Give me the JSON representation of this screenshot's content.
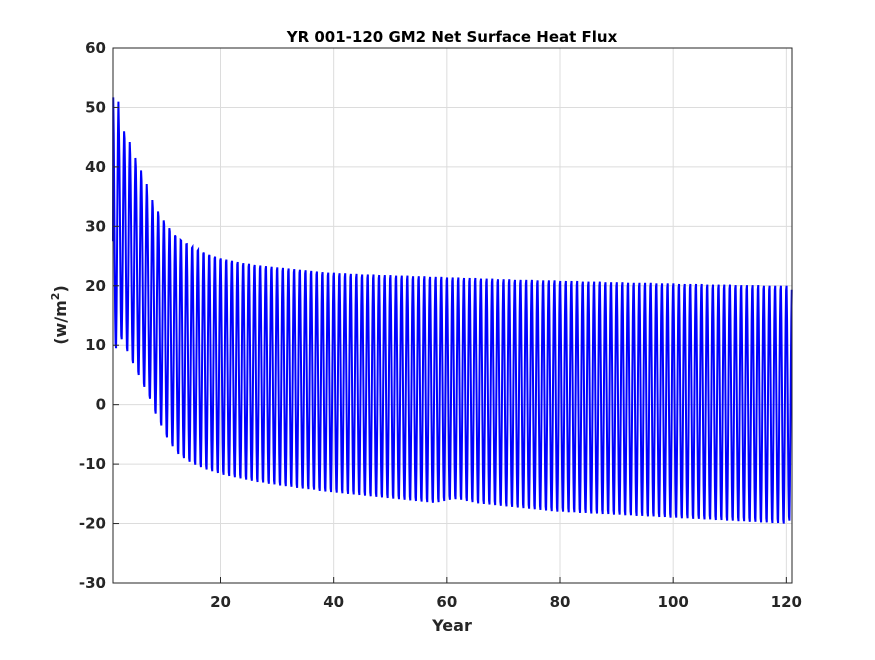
{
  "chart_data": {
    "type": "line",
    "title": "YR 001-120 GM2 Net Surface Heat Flux",
    "xlabel": "Year",
    "ylabel_main": "(w/m",
    "ylabel_sup": "2",
    "ylabel_close": ")",
    "xlim": [
      1,
      121
    ],
    "ylim": [
      -30,
      60
    ],
    "xticks": [
      "20",
      "40",
      "60",
      "80",
      "100",
      "120"
    ],
    "yticks": [
      "60",
      "50",
      "40",
      "30",
      "20",
      "10",
      "0",
      "-10",
      "-20",
      "-30"
    ],
    "grid": true,
    "series": [
      {
        "color": "#0000ff",
        "samples_per_year": 12,
        "annual_max": [
          51.7,
          46.6,
          44.8,
          42.1,
          40.0,
          37.7,
          35.0,
          33.1,
          31.6,
          30.3,
          29.1,
          28.3,
          27.6,
          27.0,
          26.5,
          26.0,
          25.6,
          25.2,
          24.9,
          24.6,
          24.4,
          24.2,
          24.0,
          23.8,
          23.7,
          23.5,
          23.4,
          23.3,
          23.2,
          23.1,
          23.0,
          22.9,
          22.8,
          22.7,
          22.6,
          22.5,
          22.4,
          22.3,
          22.2,
          22.2,
          22.1,
          22.1,
          22.0,
          22.0,
          21.9,
          21.9,
          21.9,
          21.8,
          21.8,
          21.8,
          21.7,
          21.7,
          21.7,
          21.6,
          21.6,
          21.6,
          21.5,
          21.5,
          21.5,
          21.4,
          21.4,
          21.4,
          21.3,
          21.3,
          21.3,
          21.2,
          21.2,
          21.2,
          21.1,
          21.1,
          21.1,
          21.0,
          21.0,
          21.0,
          21.0,
          20.9,
          20.9,
          20.9,
          20.9,
          20.8,
          20.8,
          20.8,
          20.8,
          20.7,
          20.7,
          20.7,
          20.7,
          20.6,
          20.6,
          20.6,
          20.6,
          20.5,
          20.5,
          20.5,
          20.5,
          20.5,
          20.4,
          20.4,
          20.4,
          20.4,
          20.3,
          20.3,
          20.3,
          20.3,
          20.3,
          20.2,
          20.2,
          20.2,
          20.2,
          20.2,
          20.1,
          20.1,
          20.1,
          20.1,
          20.1,
          20.0,
          20.0,
          20.0,
          20.0,
          20.0
        ],
        "annual_min": [
          9.5,
          11.0,
          9.0,
          7.0,
          5.0,
          3.0,
          1.0,
          -1.5,
          -3.5,
          -5.5,
          -7.0,
          -8.3,
          -9.0,
          -9.6,
          -10.1,
          -10.5,
          -10.9,
          -11.2,
          -11.5,
          -11.8,
          -12.0,
          -12.2,
          -12.4,
          -12.6,
          -12.8,
          -13.0,
          -13.1,
          -13.3,
          -13.4,
          -13.6,
          -13.7,
          -13.8,
          -14.0,
          -14.1,
          -14.2,
          -14.3,
          -14.5,
          -14.6,
          -14.7,
          -14.8,
          -14.9,
          -15.0,
          -15.1,
          -15.2,
          -15.3,
          -15.4,
          -15.5,
          -15.6,
          -15.7,
          -15.8,
          -15.9,
          -16.0,
          -16.1,
          -16.2,
          -16.3,
          -16.4,
          -16.5,
          -16.4,
          -16.2,
          -16.0,
          -15.9,
          -16.0,
          -16.2,
          -16.4,
          -16.6,
          -16.7,
          -16.8,
          -16.9,
          -17.0,
          -17.1,
          -17.2,
          -17.3,
          -17.4,
          -17.5,
          -17.6,
          -17.7,
          -17.8,
          -17.9,
          -18.0,
          -18.0,
          -18.1,
          -18.1,
          -18.2,
          -18.2,
          -18.3,
          -18.3,
          -18.4,
          -18.4,
          -18.5,
          -18.5,
          -18.6,
          -18.6,
          -18.7,
          -18.7,
          -18.8,
          -18.8,
          -18.9,
          -18.9,
          -19.0,
          -19.0,
          -19.1,
          -19.1,
          -19.2,
          -19.2,
          -19.3,
          -19.3,
          -19.4,
          -19.4,
          -19.5,
          -19.5,
          -19.6,
          -19.6,
          -19.7,
          -19.7,
          -19.8,
          -19.8,
          -19.9,
          -19.9,
          -20.0,
          -19.5
        ],
        "start_value": 27.5
      }
    ]
  }
}
